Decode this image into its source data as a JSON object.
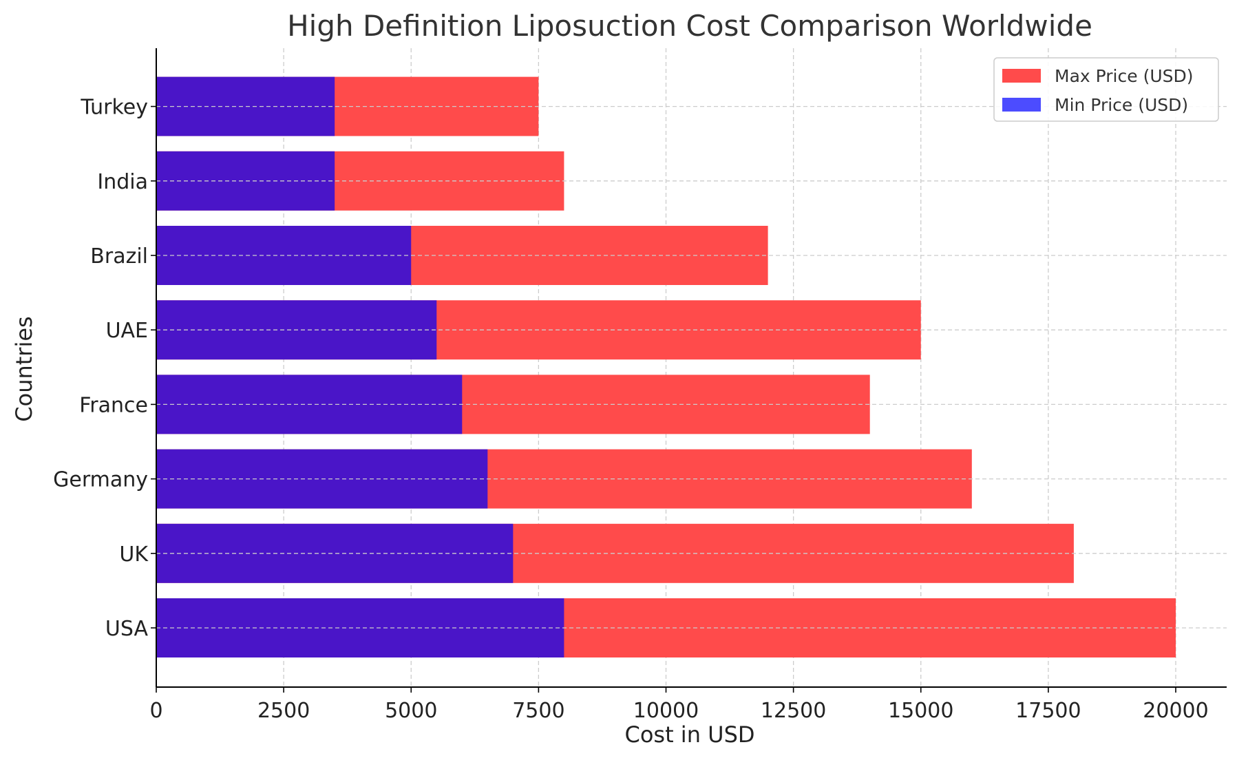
{
  "chart_data": {
    "type": "bar",
    "orientation": "horizontal",
    "title": "High Definition Liposuction Cost Comparison Worldwide",
    "xlabel": "Cost in USD",
    "ylabel": "Countries",
    "categories": [
      "USA",
      "UK",
      "Germany",
      "France",
      "UAE",
      "Brazil",
      "India",
      "Turkey"
    ],
    "series": [
      {
        "name": "Max Price (USD)",
        "color": "#ff4b4b",
        "values": [
          20000,
          18000,
          16000,
          14000,
          15000,
          12000,
          8000,
          7500
        ]
      },
      {
        "name": "Min Price (USD)",
        "color": "#4a15c8",
        "legend_color": "#4c4cff",
        "values": [
          8000,
          7000,
          6500,
          6000,
          5500,
          5000,
          3500,
          3500
        ]
      }
    ],
    "xlim": [
      0,
      21000
    ],
    "xticks": [
      0,
      2500,
      5000,
      7500,
      10000,
      12500,
      15000,
      17500,
      20000
    ],
    "grid": true,
    "legend_position": "top-right"
  }
}
